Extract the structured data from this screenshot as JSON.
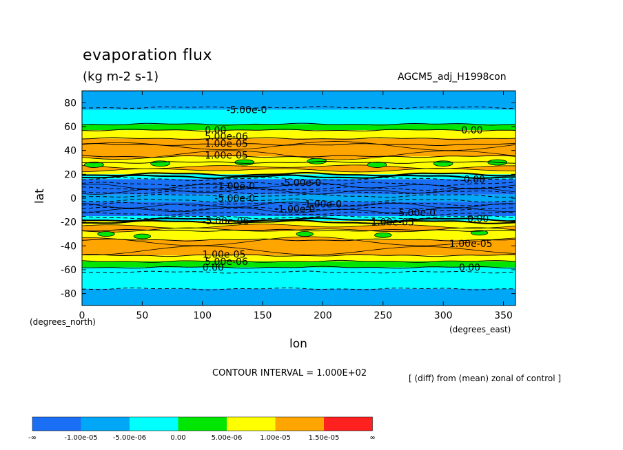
{
  "chart_data": {
    "type": "heatmap",
    "title": "evaporation flux",
    "subtitle": "(kg m-2 s-1)",
    "run_label": "AGCM5_adj_H1998con",
    "xlabel": "lon",
    "ylabel": "lat",
    "x_units": "(degrees_east)",
    "y_units": "(degrees_north)",
    "xlim": [
      0,
      360
    ],
    "ylim": [
      -90,
      90
    ],
    "x_ticks": [
      0,
      50,
      100,
      150,
      200,
      250,
      300,
      350
    ],
    "y_ticks": [
      80,
      60,
      40,
      20,
      0,
      -20,
      -40,
      -60,
      -80
    ],
    "contour_interval": "CONTOUR INTERVAL = 1.000E+02",
    "comparison_note": "[ (diff) from (mean) zonal of control ]",
    "colorbar": {
      "colors": [
        "#1a6ff5",
        "#00a7f7",
        "#00ffff",
        "#00e600",
        "#ffff00",
        "#ffa500",
        "#ff2020"
      ],
      "labels": [
        "-∞",
        "-1.00e-05",
        "-5.00e-06",
        "0.00",
        "5.00e-06",
        "1.00e-05",
        "1.50e-05",
        "∞"
      ]
    },
    "zonal_bands": [
      {
        "lat_from": 90,
        "lat_to": 74,
        "level": 1
      },
      {
        "lat_from": 74,
        "lat_to": 62,
        "level": 2
      },
      {
        "lat_from": 62,
        "lat_to": 57,
        "level": 3
      },
      {
        "lat_from": 57,
        "lat_to": 50,
        "level": 4
      },
      {
        "lat_from": 50,
        "lat_to": 45,
        "level": 5
      },
      {
        "lat_from": 45,
        "lat_to": 35,
        "level": 5
      },
      {
        "lat_from": 35,
        "lat_to": 30,
        "level": 4
      },
      {
        "lat_from": 30,
        "lat_to": 20,
        "level": 4
      },
      {
        "lat_from": 20,
        "lat_to": 16,
        "level": 2
      },
      {
        "lat_from": 16,
        "lat_to": 3,
        "level": 0
      },
      {
        "lat_from": 3,
        "lat_to": -3,
        "level": 1
      },
      {
        "lat_from": -3,
        "lat_to": -15,
        "level": 0
      },
      {
        "lat_from": -15,
        "lat_to": -19,
        "level": 2
      },
      {
        "lat_from": -19,
        "lat_to": -27,
        "level": 4
      },
      {
        "lat_from": -27,
        "lat_to": -35,
        "level": 4
      },
      {
        "lat_from": -35,
        "lat_to": -48,
        "level": 5
      },
      {
        "lat_from": -48,
        "lat_to": -53,
        "level": 4
      },
      {
        "lat_from": -53,
        "lat_to": -58,
        "level": 3
      },
      {
        "lat_from": -58,
        "lat_to": -76,
        "level": 2
      },
      {
        "lat_from": -76,
        "lat_to": -90,
        "level": 1
      }
    ],
    "contour_labels": [
      {
        "text": "-5.00e-0",
        "lon": 120,
        "lat": 74
      },
      {
        "text": "0.00",
        "lon": 102,
        "lat": 57
      },
      {
        "text": "5.00e-06",
        "lon": 102,
        "lat": 52
      },
      {
        "text": "1.00e-05",
        "lon": 102,
        "lat": 46
      },
      {
        "text": "1.00e-05",
        "lon": 102,
        "lat": 36
      },
      {
        "text": "0.00",
        "lon": 315,
        "lat": 57
      },
      {
        "text": "0.00",
        "lon": 317,
        "lat": 16
      },
      {
        "text": "-1.00e-0",
        "lon": 110,
        "lat": 10
      },
      {
        "text": "-5.00e-0",
        "lon": 165,
        "lat": 13
      },
      {
        "text": "-5.00e-0",
        "lon": 110,
        "lat": 0
      },
      {
        "text": "-1.00e-0",
        "lon": 160,
        "lat": -9
      },
      {
        "text": "1.00e-0",
        "lon": 185,
        "lat": -5
      },
      {
        "text": "-5.00e-0",
        "lon": 260,
        "lat": -12
      },
      {
        "text": "-5.00e-06",
        "lon": 100,
        "lat": -19
      },
      {
        "text": "1.00e-05",
        "lon": 240,
        "lat": -20
      },
      {
        "text": "0.00",
        "lon": 320,
        "lat": -17
      },
      {
        "text": "1.00e-05",
        "lon": 305,
        "lat": -38
      },
      {
        "text": "1.00e-05",
        "lon": 100,
        "lat": -47
      },
      {
        "text": "5.00e-06",
        "lon": 102,
        "lat": -53
      },
      {
        "text": "0.00",
        "lon": 100,
        "lat": -58
      },
      {
        "text": "0.00",
        "lon": 313,
        "lat": -58
      }
    ]
  }
}
